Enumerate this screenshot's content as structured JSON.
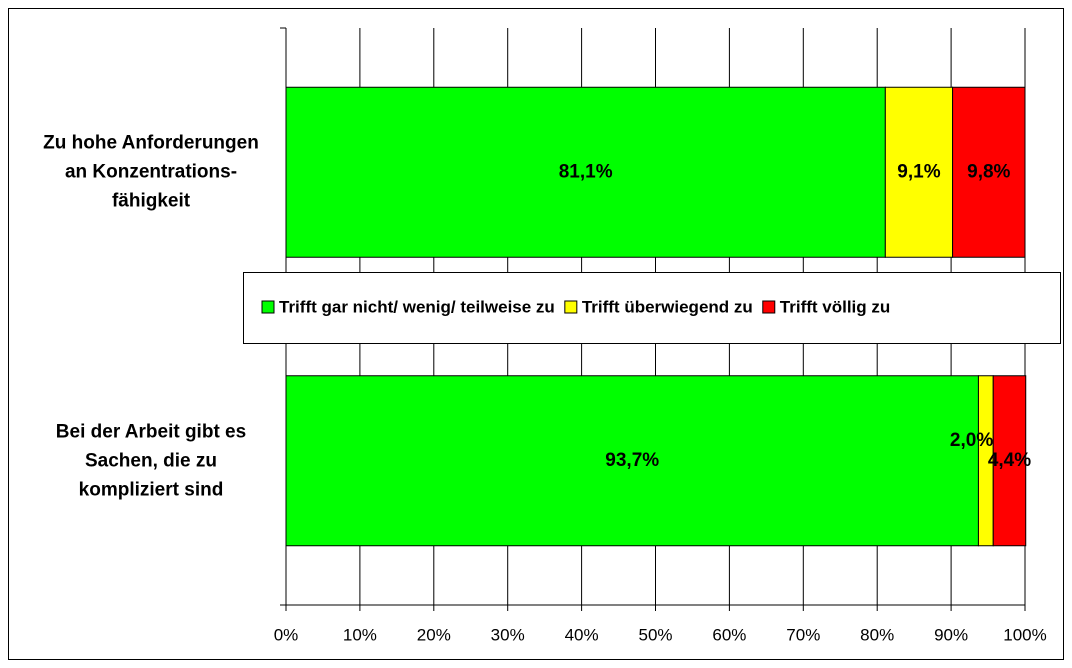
{
  "chart_data": {
    "type": "stacked-barh",
    "categories": [
      "Zu hohe Anforderungen an Konzentrations-fähigkeit",
      "Bei der Arbeit gibt es Sachen, die zu kompliziert sind"
    ],
    "series": [
      {
        "name": "Trifft gar nicht/ wenig/ teilweise zu",
        "color": "#00ff00",
        "values": [
          81.1,
          93.7
        ],
        "value_labels": [
          "81,1%",
          "93,7%"
        ]
      },
      {
        "name": "Trifft überwiegend zu",
        "color": "#ffff00",
        "values": [
          9.1,
          2.0
        ],
        "value_labels": [
          "9,1%",
          "2,0%"
        ]
      },
      {
        "name": "Trifft völlig zu",
        "color": "#ff0000",
        "values": [
          9.8,
          4.4
        ],
        "value_labels": [
          "9,8%",
          "4,4%"
        ]
      }
    ],
    "xlim": [
      0,
      100
    ],
    "xticks": [
      {
        "value": 0,
        "label": "0%"
      },
      {
        "value": 10,
        "label": "10%"
      },
      {
        "value": 20,
        "label": "20%"
      },
      {
        "value": 30,
        "label": "30%"
      },
      {
        "value": 40,
        "label": "40%"
      },
      {
        "value": 50,
        "label": "50%"
      },
      {
        "value": 60,
        "label": "60%"
      },
      {
        "value": 70,
        "label": "70%"
      },
      {
        "value": 80,
        "label": "80%"
      },
      {
        "value": 90,
        "label": "90%"
      },
      {
        "value": 100,
        "label": "100%"
      }
    ],
    "grid": true
  }
}
